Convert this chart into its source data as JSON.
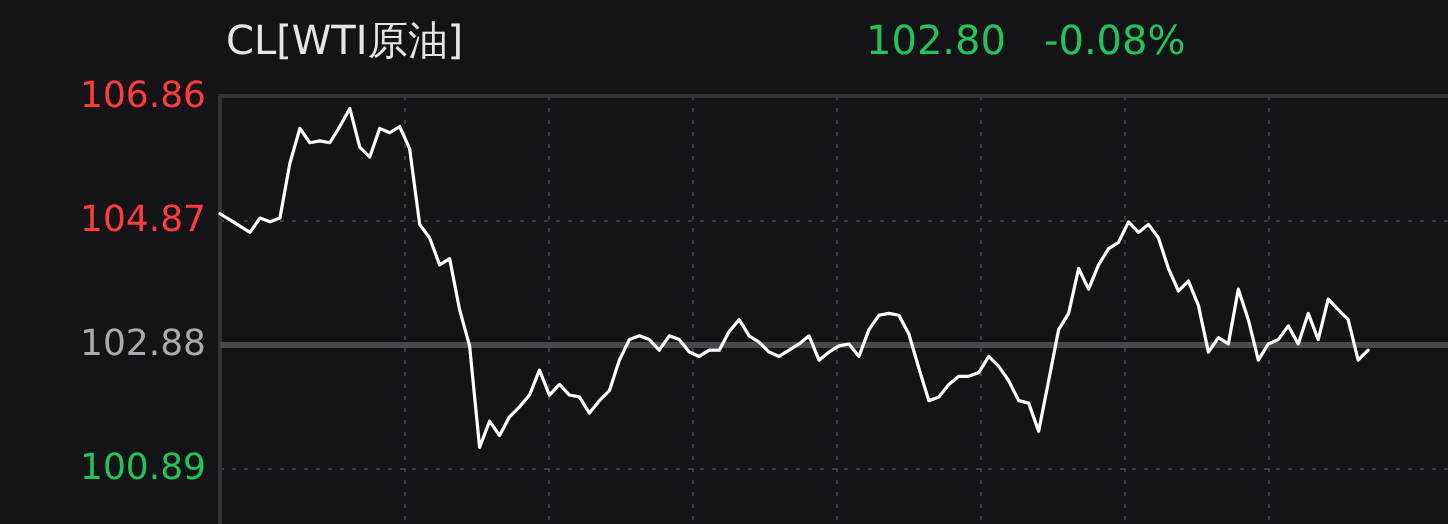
{
  "chart_data": {
    "type": "line",
    "title": "CL[WTI原油]",
    "annotations": [
      "102.80",
      "-0.08%"
    ],
    "categories": [
      null,
      null,
      null,
      null,
      null,
      null,
      null,
      null,
      null,
      null,
      null,
      null,
      null,
      null,
      null,
      null,
      null,
      null,
      null,
      null,
      null,
      null,
      null,
      null,
      null,
      null,
      null,
      null,
      null,
      null,
      null,
      null,
      null,
      null,
      null,
      null,
      null,
      null,
      null,
      null,
      null,
      null,
      null,
      null,
      null,
      null,
      null,
      null,
      null,
      null,
      null,
      null,
      null,
      null,
      null,
      null,
      null,
      null,
      null,
      null,
      null,
      null,
      null,
      null,
      null,
      null,
      null,
      null,
      null,
      null,
      null,
      null,
      null,
      null,
      null,
      null,
      null,
      null,
      null,
      null,
      null,
      null,
      null,
      null,
      null,
      null,
      null,
      null,
      null,
      null,
      null,
      null,
      null,
      null,
      null,
      null,
      null,
      null,
      null,
      null,
      null,
      null,
      null,
      null,
      null,
      null,
      null,
      null,
      null,
      null,
      null,
      null,
      null,
      null,
      null,
      null,
      null,
      null,
      null,
      null,
      null,
      null,
      null,
      null
    ],
    "series": [
      {
        "color": "#ffffff",
        "values": [
          104.97,
          104.87,
          104.77,
          104.67,
          104.9,
          104.84,
          104.9,
          105.78,
          106.34,
          106.11,
          106.14,
          106.11,
          106.37,
          106.66,
          106.04,
          105.88,
          106.34,
          106.27,
          106.37,
          106.01,
          104.8,
          104.58,
          104.15,
          104.25,
          103.43,
          102.85,
          101.22,
          101.64,
          101.41,
          101.71,
          101.87,
          102.06,
          102.46,
          102.06,
          102.23,
          102.06,
          102.03,
          101.77,
          101.97,
          102.13,
          102.62,
          102.95,
          103.01,
          102.95,
          102.78,
          103.01,
          102.95,
          102.75,
          102.68,
          102.78,
          102.78,
          103.08,
          103.27,
          103.01,
          102.91,
          102.75,
          102.68,
          102.78,
          102.88,
          103.01,
          102.62,
          102.75,
          102.85,
          102.88,
          102.68,
          103.11,
          103.34,
          103.37,
          103.34,
          103.04,
          102.49,
          101.97,
          102.03,
          102.23,
          102.36,
          102.36,
          102.42,
          102.68,
          102.52,
          102.29,
          101.97,
          101.93,
          101.48,
          102.29,
          103.11,
          103.37,
          104.09,
          103.76,
          104.15,
          104.41,
          104.51,
          104.84,
          104.67,
          104.8,
          104.58,
          104.09,
          103.73,
          103.89,
          103.5,
          102.75,
          102.98,
          102.88,
          103.76,
          103.27,
          102.62,
          102.88,
          102.95,
          103.17,
          102.88,
          103.37,
          102.95,
          103.6,
          103.43,
          103.27,
          102.62,
          102.78,
          null,
          null,
          null,
          null,
          null,
          null,
          null,
          null
        ]
      }
    ],
    "ylim": [
      99.99,
      106.86
    ],
    "yticks": [
      100.89,
      102.88,
      104.87,
      106.86
    ],
    "ref_lines": [
      {
        "axis": "y",
        "value": 102.88,
        "color": "#48484c"
      }
    ],
    "grid": true,
    "line_style": "solid",
    "tick_labels": "y"
  }
}
